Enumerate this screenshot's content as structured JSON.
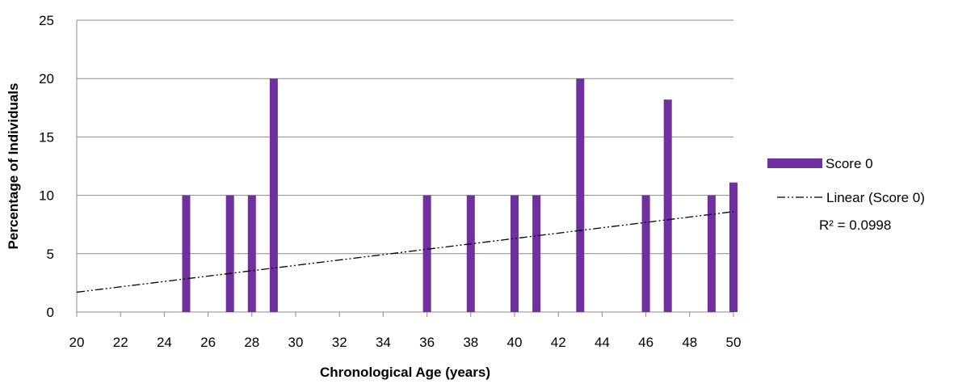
{
  "chart_data": {
    "type": "bar",
    "xlabel": "Chronological Age (years)",
    "ylabel": "Percentage of Individuals",
    "xlim": [
      20,
      50
    ],
    "ylim": [
      0,
      25
    ],
    "x_ticks": [
      20,
      22,
      24,
      26,
      28,
      30,
      32,
      34,
      36,
      38,
      40,
      42,
      44,
      46,
      48,
      50
    ],
    "y_ticks": [
      0,
      5,
      10,
      15,
      20,
      25
    ],
    "grid": "horizontal",
    "legend_position": "right",
    "series": [
      {
        "name": "Score 0",
        "color": "#7030a0",
        "points": [
          {
            "x": 25,
            "y": 10
          },
          {
            "x": 27,
            "y": 10
          },
          {
            "x": 28,
            "y": 10
          },
          {
            "x": 29,
            "y": 20
          },
          {
            "x": 36,
            "y": 10
          },
          {
            "x": 38,
            "y": 10
          },
          {
            "x": 40,
            "y": 10
          },
          {
            "x": 41,
            "y": 10
          },
          {
            "x": 43,
            "y": 20
          },
          {
            "x": 46,
            "y": 10
          },
          {
            "x": 47,
            "y": 18.2
          },
          {
            "x": 49,
            "y": 10
          },
          {
            "x": 50,
            "y": 11.1
          }
        ]
      }
    ],
    "trendline": {
      "label": "Linear (Score 0)",
      "r2_label": "R² = 0.0998",
      "style": "dash-dot-dot",
      "color": "#000000",
      "x_start": 20,
      "y_start": 1.7,
      "x_end": 50,
      "y_end": 8.6
    }
  }
}
